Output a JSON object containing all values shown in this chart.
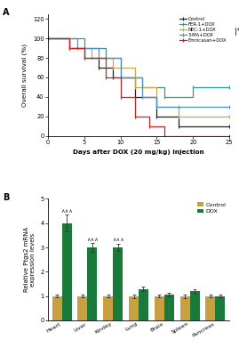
{
  "panel_A": {
    "title_label": "A",
    "xlabel": "Days after DOX (20 mg/kg) injection",
    "ylabel": "Overall survival (%)",
    "xlim": [
      0,
      25
    ],
    "ylim": [
      0,
      125
    ],
    "yticks": [
      0,
      20,
      40,
      60,
      80,
      100,
      120
    ],
    "xticks": [
      0,
      5,
      10,
      15,
      20,
      25
    ],
    "curves": {
      "Control": {
        "color": "#222222",
        "x": [
          0,
          3,
          5,
          7,
          9,
          12,
          15,
          18,
          25
        ],
        "y": [
          100,
          90,
          80,
          70,
          60,
          40,
          20,
          10,
          10
        ]
      },
      "FER-1+DOX": {
        "color": "#2a9d8f",
        "x": [
          0,
          5,
          8,
          10,
          13,
          16,
          20,
          25
        ],
        "y": [
          100,
          90,
          80,
          60,
          50,
          40,
          50,
          50
        ]
      },
      "NEC-1+DOX": {
        "color": "#c9a84c",
        "x": [
          0,
          3,
          6,
          9,
          12,
          15,
          18,
          25
        ],
        "y": [
          100,
          90,
          80,
          70,
          50,
          30,
          20,
          20
        ]
      },
      "3-MA+DOX": {
        "color": "#4a90c4",
        "x": [
          0,
          4,
          7,
          10,
          13,
          15,
          18,
          25
        ],
        "y": [
          100,
          90,
          80,
          60,
          40,
          30,
          30,
          30
        ]
      },
      "Emricasan+DOX": {
        "color": "#cc2222",
        "x": [
          0,
          3,
          5,
          8,
          10,
          12,
          14,
          16,
          25
        ],
        "y": [
          100,
          90,
          80,
          60,
          40,
          20,
          10,
          0,
          0
        ]
      }
    },
    "legend_order": [
      "Control",
      "FER-1+DOX",
      "NEC-1+DOX",
      "3-MA+DOX",
      "Emricasan+DOX"
    ]
  },
  "panel_B": {
    "title_label": "B",
    "ylabel": "Relative Ptgs2 mRNA\nexpression levels",
    "ylim": [
      0,
      5
    ],
    "yticks": [
      0,
      1,
      2,
      3,
      4,
      5
    ],
    "categories": [
      "Heart",
      "Liver",
      "Kindey",
      "Lung",
      "Brain",
      "Spleen",
      "Pancreas"
    ],
    "control_values": [
      1.0,
      1.0,
      1.0,
      1.0,
      1.0,
      1.0,
      1.0
    ],
    "dox_values": [
      4.0,
      3.0,
      3.0,
      1.3,
      1.05,
      1.2,
      1.0
    ],
    "control_errors": [
      0.06,
      0.06,
      0.06,
      0.07,
      0.06,
      0.07,
      0.06
    ],
    "dox_errors": [
      0.35,
      0.18,
      0.15,
      0.1,
      0.07,
      0.1,
      0.06
    ],
    "control_color": "#c8a040",
    "dox_color": "#1a7a3a",
    "significance": [
      "∧∧∧",
      "∧∧∧",
      "∧∧∧",
      "",
      "",
      "",
      ""
    ],
    "bar_width": 0.38,
    "legend_labels": [
      "Control",
      "DOX"
    ]
  }
}
